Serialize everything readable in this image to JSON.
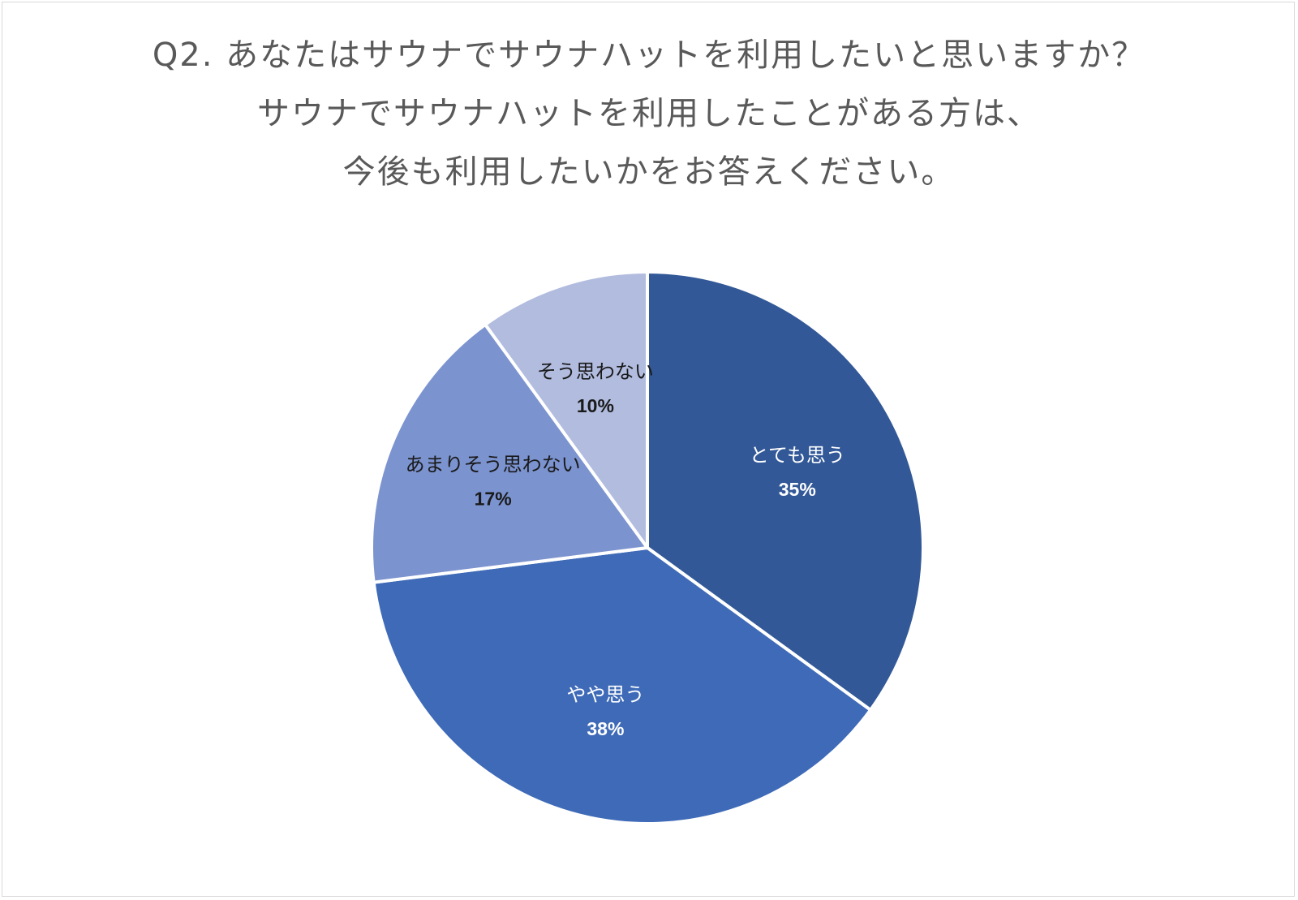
{
  "chart_data": {
    "type": "pie",
    "title": {
      "line1": "Q2. あなたはサウナでサウナハットを利用したいと思いますか？",
      "line2": "サウナでサウナハットを利用したことがある方は、",
      "line3": "今後も利用したいかをお答えください。"
    },
    "slices": [
      {
        "label": "とても思う",
        "value": 35,
        "value_label": "35%",
        "color": "#325897",
        "text_color": "#ffffff"
      },
      {
        "label": "やや思う",
        "value": 38,
        "value_label": "38%",
        "color": "#3e6ab7",
        "text_color": "#ffffff"
      },
      {
        "label": "あまりそう思わない",
        "value": 17,
        "value_label": "17%",
        "color": "#7b93cf",
        "text_color": "#1a1a1a"
      },
      {
        "label": "そう思わない",
        "value": 10,
        "value_label": "10%",
        "color": "#b1bcdf",
        "text_color": "#1a1a1a"
      }
    ],
    "start": "12 o'clock",
    "direction": "clockwise",
    "legend": "none",
    "separator_color": "#ffffff"
  }
}
